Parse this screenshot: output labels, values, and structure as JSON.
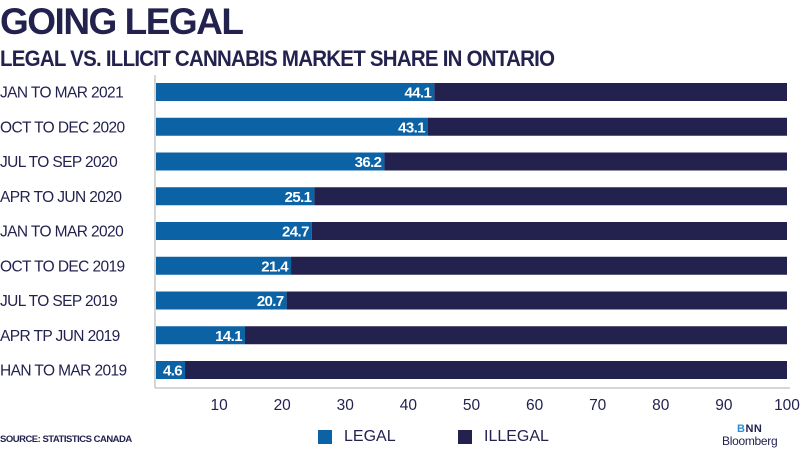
{
  "chart_data": {
    "type": "bar",
    "orientation": "horizontal",
    "stacked": true,
    "title": "GOING LEGAL",
    "subtitle": "LEGAL VS. ILLICIT CANNABIS MARKET SHARE IN ONTARIO",
    "xlabel": "",
    "ylabel": "",
    "xlim": [
      0,
      100
    ],
    "xticks": [
      10,
      20,
      30,
      40,
      50,
      60,
      70,
      80,
      90,
      100
    ],
    "xtick_labels": [
      "10",
      "20",
      "30",
      "40",
      "50",
      "60",
      "70",
      "80",
      "90",
      "100"
    ],
    "grid": false,
    "categories": [
      "JAN TO MAR 2021",
      "OCT TO DEC 2020",
      "JUL TO SEP 2020",
      "APR TO JUN 2020",
      "JAN TO MAR 2020",
      "OCT TO DEC 2019",
      "JUL TO SEP 2019",
      "APR TP JUN 2019",
      "HAN TO MAR 2019"
    ],
    "series": [
      {
        "name": "LEGAL",
        "color": "#0b63a6",
        "values": [
          44.1,
          43.1,
          36.2,
          25.1,
          24.7,
          21.4,
          20.7,
          14.1,
          4.6
        ]
      },
      {
        "name": "ILLEGAL",
        "color": "#23224f",
        "values": [
          55.9,
          56.9,
          63.8,
          74.9,
          75.3,
          78.6,
          79.3,
          85.9,
          95.4
        ]
      }
    ],
    "data_labels": [
      "44.1",
      "43.1",
      "36.2",
      "25.1",
      "24.7",
      "21.4",
      "20.7",
      "14.1",
      "4.6"
    ],
    "legend": {
      "placement": "bottom-center",
      "entries": [
        "LEGAL",
        "ILLEGAL"
      ]
    },
    "source": "SOURCE: STATISTICS CANADA"
  },
  "branding": {
    "line1_accent": "B",
    "line1_rest": "NN",
    "line2": "Bloomberg"
  }
}
